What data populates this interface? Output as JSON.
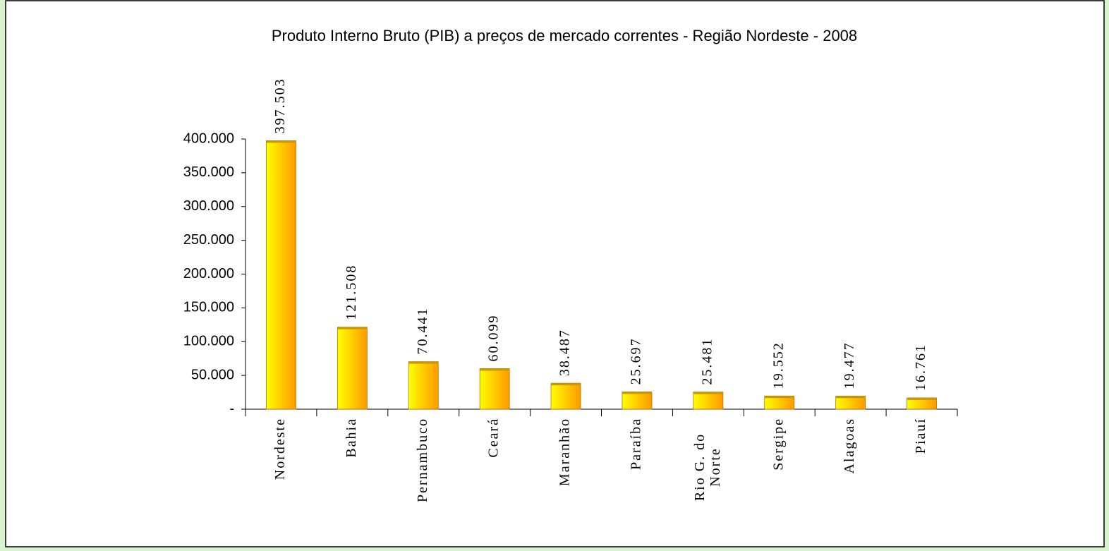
{
  "chart_data": {
    "type": "bar",
    "title": "Produto Interno Bruto (PIB) a preços de mercado correntes - Região Nordeste - 2008",
    "categories": [
      "Nordeste",
      "Bahia",
      "Pernambuco",
      "Ceará",
      "Maranhão",
      "Paraíba",
      "Rio G. do Norte",
      "Sergipe",
      "Alagoas",
      "Piauí"
    ],
    "values": [
      397503,
      121508,
      70441,
      60099,
      38487,
      25697,
      25481,
      19552,
      19477,
      16761
    ],
    "value_labels": [
      "397.503",
      "121.508",
      "70.441",
      "60.099",
      "38.487",
      "25.697",
      "25.481",
      "19.552",
      "19.477",
      "16.761"
    ],
    "color": [
      "#ffff00",
      "#ff9900"
    ],
    "ylim": [
      0,
      400000
    ],
    "yticks": [
      {
        "value": 0,
        "label": "-"
      },
      {
        "value": 50000,
        "label": "50.000"
      },
      {
        "value": 100000,
        "label": "100.000"
      },
      {
        "value": 150000,
        "label": "150.000"
      },
      {
        "value": 200000,
        "label": "200.000"
      },
      {
        "value": 250000,
        "label": "250.000"
      },
      {
        "value": 300000,
        "label": "300.000"
      },
      {
        "value": 350000,
        "label": "350.000"
      },
      {
        "value": 400000,
        "label": "400.000"
      }
    ],
    "grid": false
  }
}
